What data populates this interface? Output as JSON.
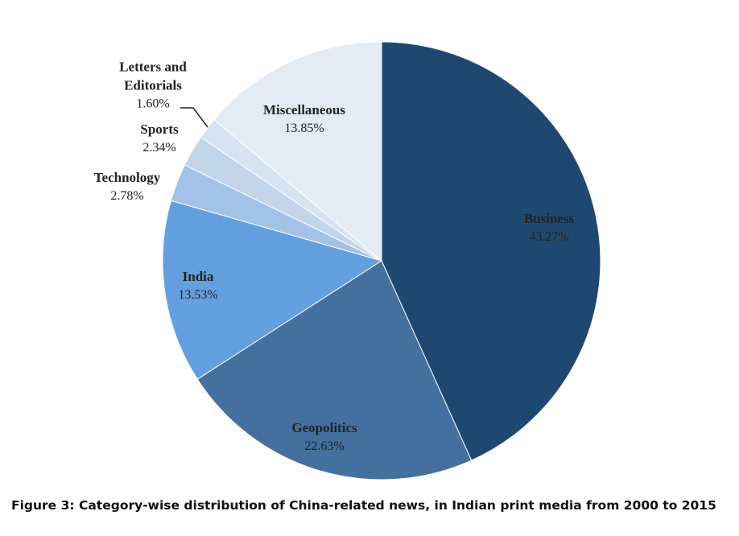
{
  "chart_data": {
    "type": "pie",
    "title": "Figure 3: Category-wise distribution of China-related news, in Indian print media from 2000 to 2015",
    "categories": [
      "Business",
      "Geopolitics",
      "India",
      "Technology",
      "Sports",
      "Letters and Editorials",
      "Miscellaneous"
    ],
    "values": [
      43.27,
      22.63,
      13.53,
      2.78,
      2.34,
      1.6,
      13.85
    ],
    "value_labels": [
      "43.27%",
      "22.63%",
      "13.53%",
      "2.78%",
      "2.34%",
      "1.60%",
      "13.85%"
    ],
    "colors": [
      "#1f4871",
      "#44709f",
      "#64a0e0",
      "#a3c2e7",
      "#c2d5eb",
      "#d6e3f2",
      "#e3ebf5"
    ]
  }
}
